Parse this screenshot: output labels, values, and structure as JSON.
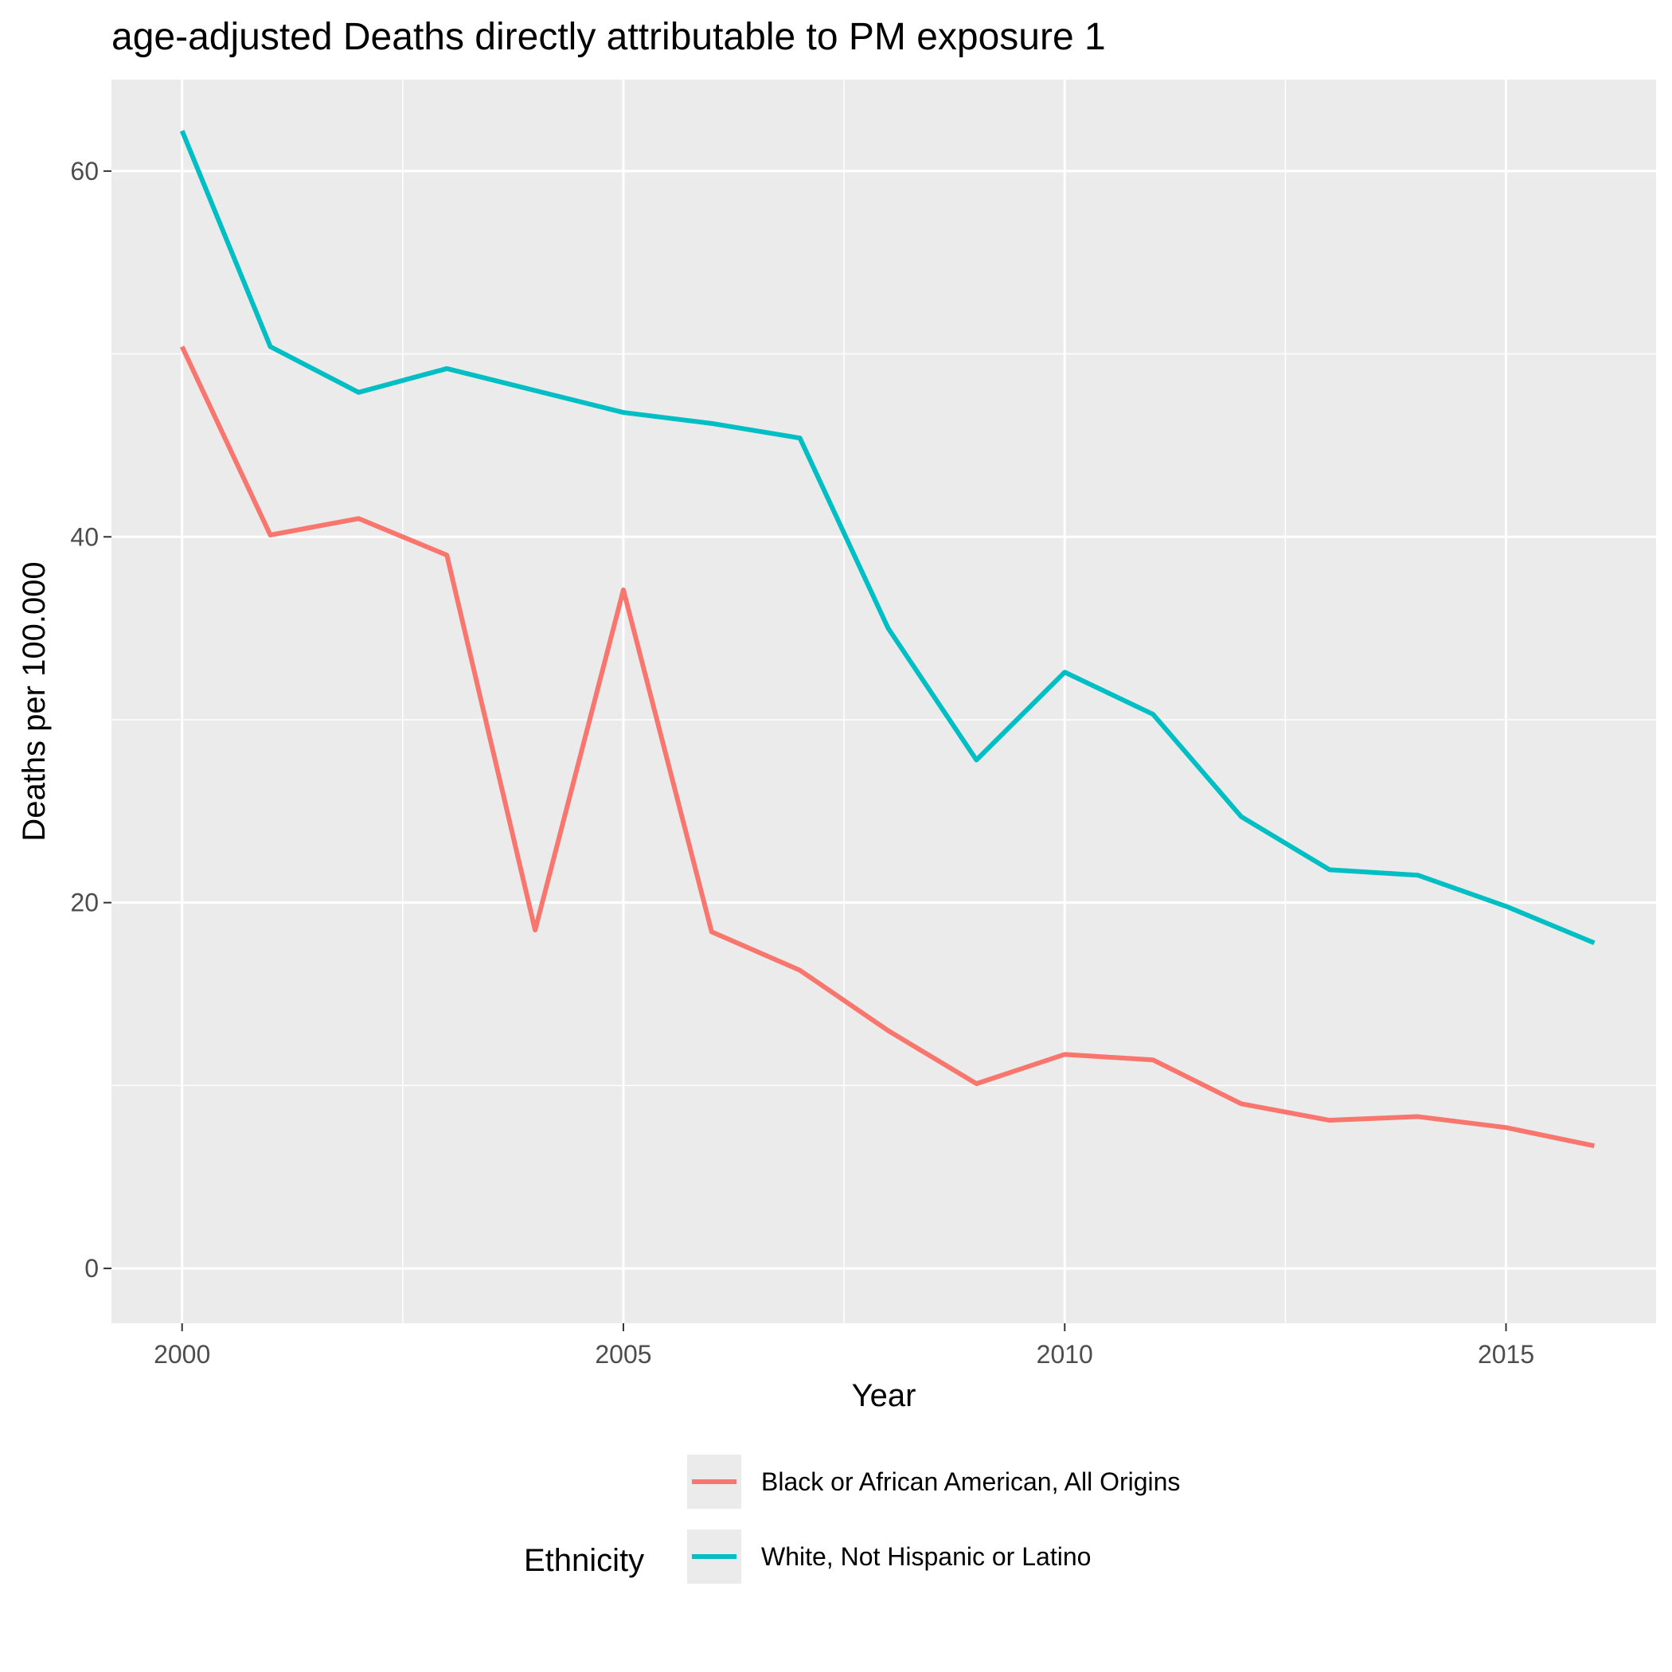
{
  "chart_data": {
    "type": "line",
    "title": "age-adjusted Deaths directly attributable to PM exposure 1",
    "xlabel": "Year",
    "ylabel": "Deaths per 100.000",
    "xlim": [
      1999.2,
      2016.7
    ],
    "ylim": [
      -3,
      65
    ],
    "x_ticks": [
      2000,
      2005,
      2010,
      2015
    ],
    "x_tick_labels": [
      "2000",
      "2005",
      "2010",
      "2015"
    ],
    "y_ticks": [
      0,
      20,
      40,
      60
    ],
    "y_tick_labels": [
      "0",
      "20",
      "40",
      "60"
    ],
    "x_minor_ticks": [
      2002.5,
      2007.5,
      2012.5
    ],
    "y_minor_ticks": [
      10,
      30,
      50
    ],
    "grid": true,
    "legend": {
      "title": "Ethnicity",
      "position": "bottom"
    },
    "x": [
      2000,
      2001,
      2002,
      2003,
      2004,
      2005,
      2006,
      2007,
      2008,
      2009,
      2010,
      2011,
      2012,
      2013,
      2014,
      2015,
      2016
    ],
    "series": [
      {
        "name": "Black or African American, All Origins",
        "color": "#F8766D",
        "values": [
          50.4,
          40.1,
          41.0,
          39.0,
          18.5,
          37.1,
          18.4,
          16.3,
          13.0,
          10.1,
          11.7,
          11.4,
          9.0,
          8.1,
          8.3,
          7.7,
          6.7
        ]
      },
      {
        "name": "White, Not Hispanic or Latino",
        "color": "#00BFC4",
        "values": [
          62.2,
          50.4,
          47.9,
          49.2,
          48.0,
          46.8,
          46.2,
          45.4,
          35.0,
          27.8,
          32.6,
          30.3,
          24.7,
          21.8,
          21.5,
          19.8,
          17.8
        ]
      }
    ]
  }
}
